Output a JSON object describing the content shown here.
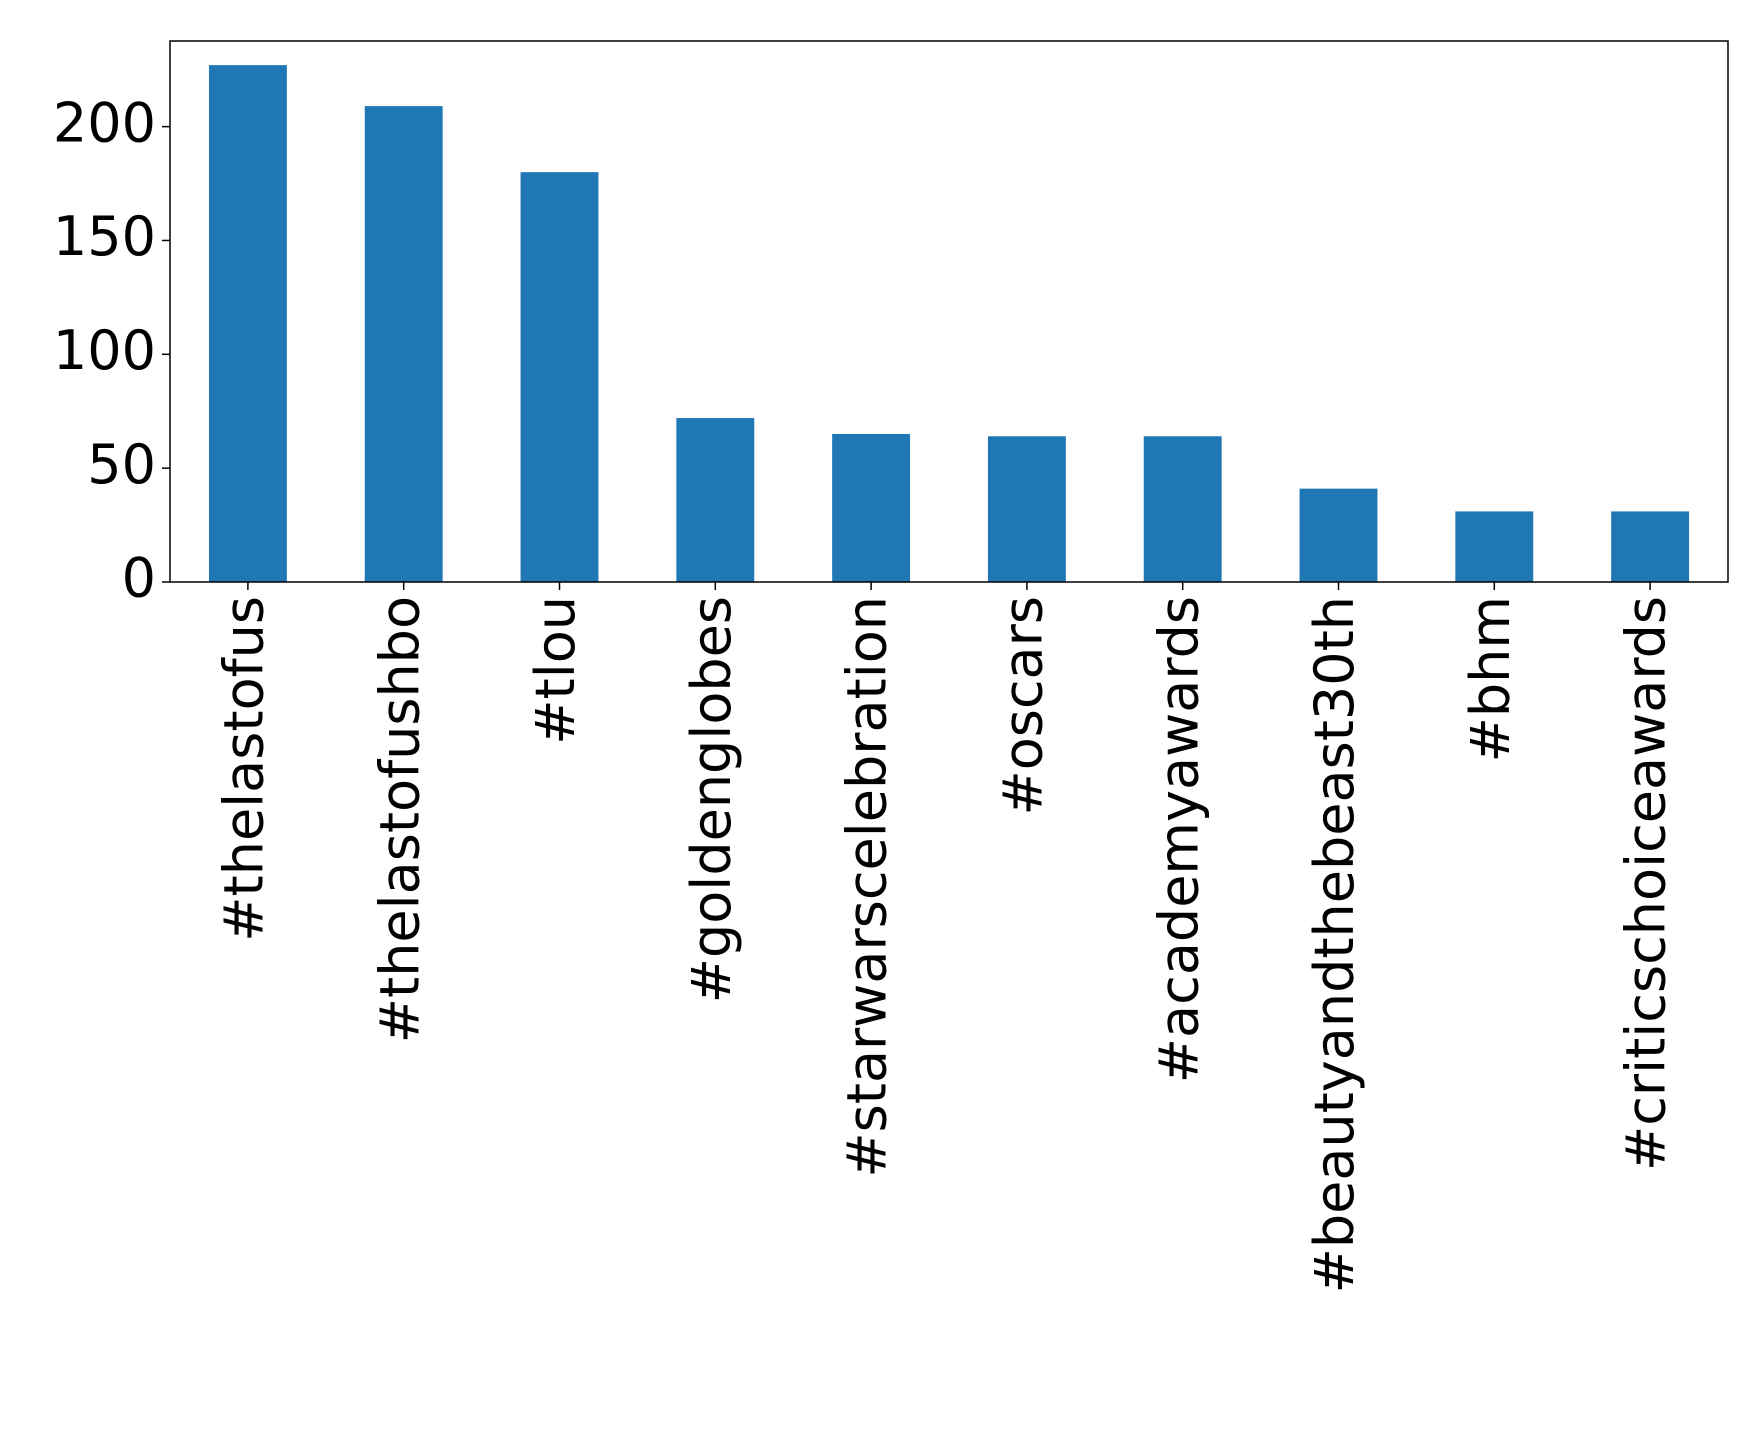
{
  "chart_data": {
    "type": "bar",
    "categories": [
      "#thelastofus",
      "#thelastofushbo",
      "#tlou",
      "#goldenglobes",
      "#starwarscelebration",
      "#oscars",
      "#academyawards",
      "#beautyandthebeast30th",
      "#bhm",
      "#criticschoiceawards"
    ],
    "values": [
      227,
      209,
      180,
      72,
      65,
      64,
      64,
      41,
      31,
      31
    ],
    "color": "#1f77b4",
    "ylim": [
      0,
      237.6
    ],
    "yticks": [
      0,
      50,
      100,
      150,
      200
    ],
    "grid": false
  }
}
